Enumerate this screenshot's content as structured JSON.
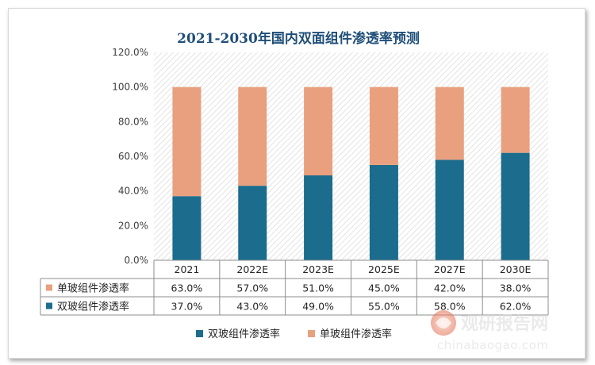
{
  "chart_data": {
    "type": "bar",
    "stacked": true,
    "title": "2021-2030年国内双面组件渗透率预测",
    "categories": [
      "2021",
      "2022E",
      "2023E",
      "2025E",
      "2027E",
      "2030E"
    ],
    "series": [
      {
        "name": "双玻组件渗透率",
        "values": [
          37.0,
          43.0,
          49.0,
          55.0,
          58.0,
          62.0
        ],
        "color": "#1b6c8d"
      },
      {
        "name": "单玻组件渗透率",
        "values": [
          63.0,
          57.0,
          51.0,
          45.0,
          42.0,
          38.0
        ],
        "color": "#e8a07f"
      }
    ],
    "yticks": [
      "0.0%",
      "20.0%",
      "40.0%",
      "60.0%",
      "80.0%",
      "100.0%",
      "120.0%"
    ],
    "ylim": [
      0,
      120
    ],
    "value_format": "percent_1dp",
    "grid": false,
    "plot_background": "hatched",
    "legend_position": "bottom",
    "data_table": true
  },
  "watermark": {
    "brand": "观研报告网",
    "url": "chinabaogao.com"
  }
}
